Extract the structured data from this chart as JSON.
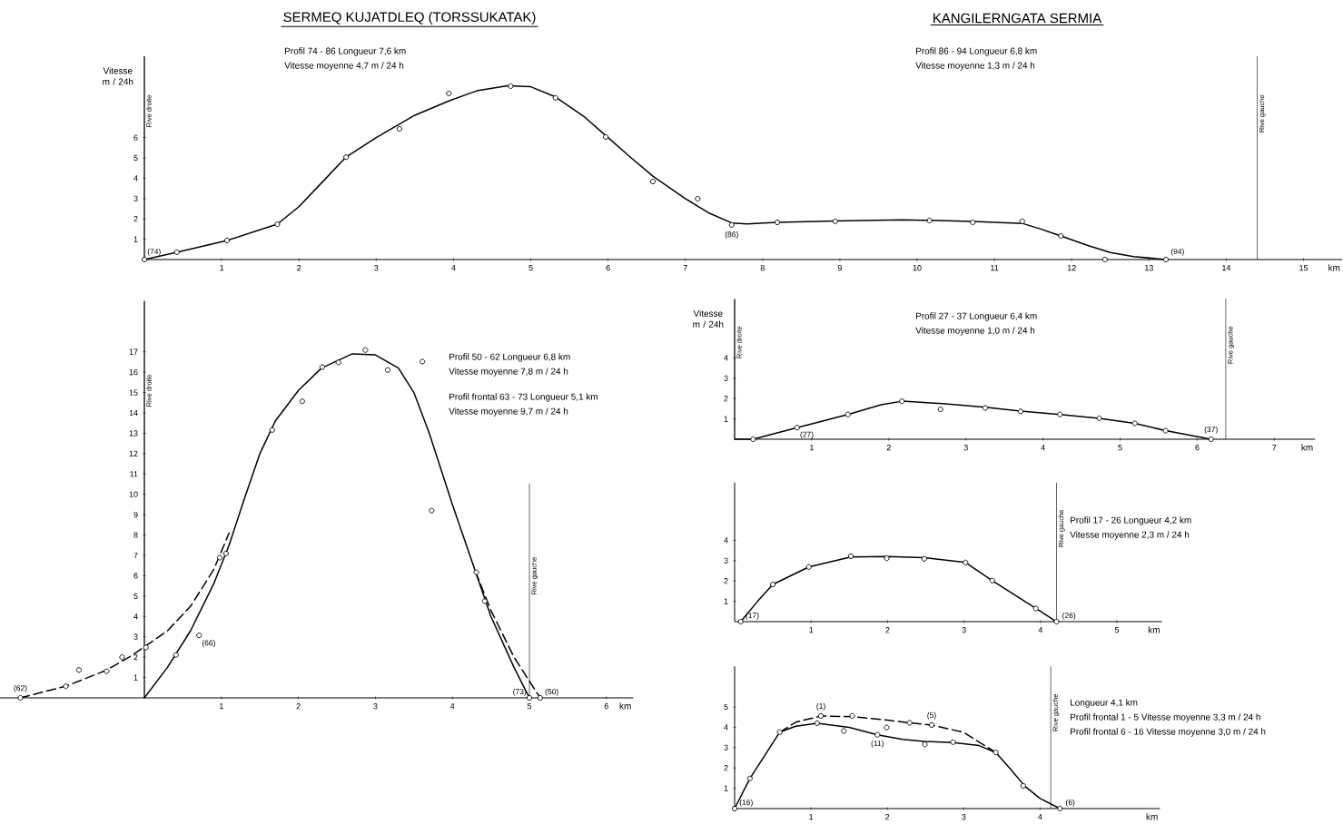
{
  "chart_data": [
    {
      "type": "line",
      "title": "SERMEQ KUJATDLEQ (TORSSUKATAK)",
      "ylabel": "Vitesse m / 24h",
      "xlabel": "km",
      "xlim": [
        0,
        15.5
      ],
      "ylim": [
        0,
        10
      ],
      "xticks": [
        1,
        2,
        3,
        4,
        5,
        6,
        7,
        8,
        9,
        10,
        11,
        12,
        13,
        14,
        15
      ],
      "yticks": [
        1,
        2,
        3,
        4,
        5,
        6
      ],
      "series": [
        {
          "type": "line",
          "color": "#000000",
          "marker": "none",
          "line_style": "solid",
          "x": [
            0,
            0.42,
            1.07,
            1.72,
            2,
            2.3,
            2.61,
            3,
            3.5,
            3.94,
            4.3,
            4.7,
            5,
            5.32,
            5.7,
            5.97,
            6.3,
            6.58,
            7,
            7.3,
            7.6,
            7.8,
            8.19,
            8.94,
            9.8,
            10.16,
            10.72,
            11.36,
            11.6,
            11.86,
            12.2,
            12.5,
            12.8,
            13.22
          ],
          "values": [
            0,
            0.36,
            0.94,
            1.74,
            2.6,
            3.8,
            5.04,
            6.0,
            7.1,
            7.8,
            8.3,
            8.55,
            8.5,
            8.0,
            7.0,
            6.1,
            5.0,
            4.1,
            3.0,
            2.3,
            1.8,
            1.75,
            1.83,
            1.9,
            1.95,
            1.93,
            1.87,
            1.78,
            1.5,
            1.16,
            0.7,
            0.35,
            0.15,
            0
          ]
        },
        {
          "type": "scatter",
          "color": "#000000",
          "marker": "circle",
          "x": [
            0,
            0.42,
            1.07,
            1.72,
            2.61,
            3.3,
            3.94,
            4.74,
            5.32,
            5.97,
            6.58,
            7.16,
            7.6,
            8.19,
            8.94,
            10.16,
            10.72,
            11.36,
            11.86,
            12.43,
            13.22
          ],
          "values": [
            0,
            0.36,
            0.94,
            1.74,
            5.04,
            6.43,
            8.17,
            8.53,
            7.95,
            6.03,
            3.84,
            2.99,
            1.7,
            1.83,
            1.88,
            1.92,
            1.83,
            1.88,
            1.16,
            0,
            0
          ]
        }
      ],
      "ref_lines": [
        {
          "axis": "x",
          "value": 0,
          "label": "Rive droite"
        },
        {
          "axis": "x",
          "value": 14.4,
          "label": "Rive gauche"
        }
      ],
      "annotations": [
        "Profil 74 - 86 Longueur 7,6 km",
        "Vitesse moyenne 4,7 m / 24 h",
        "KANGILERNGATA SERMIA",
        "Profil 86 - 94 Longueur 6,8 km",
        "Vitesse moyenne 1,3 m / 24 h",
        {
          "text": "(74)",
          "x": 0,
          "y": 0
        },
        {
          "text": "(86)",
          "x": 7.6,
          "y": 1.7
        },
        {
          "text": "(94)",
          "x": 13.22,
          "y": 0
        }
      ]
    },
    {
      "type": "line",
      "xlabel": "km",
      "xlim": [
        -1.88,
        6.35
      ],
      "ylim": [
        0,
        19.5
      ],
      "xticks": [
        1,
        2,
        3,
        4,
        5,
        6
      ],
      "yticks": [
        1,
        2,
        3,
        4,
        5,
        6,
        7,
        8,
        9,
        10,
        11,
        12,
        13,
        14,
        15,
        16,
        17
      ],
      "series": [
        {
          "type": "line",
          "color": "#000000",
          "marker": "none",
          "line_style": "solid",
          "x": [
            0,
            0.3,
            0.6,
            0.9,
            1.1,
            1.3,
            1.5,
            1.7,
            2.0,
            2.3,
            2.7,
            3.0,
            3.3,
            3.5,
            3.7,
            4.0,
            4.3,
            4.5,
            4.8,
            5.0
          ],
          "values": [
            0,
            1.5,
            3.3,
            5.6,
            7.5,
            9.8,
            12.0,
            13.6,
            15.1,
            16.2,
            16.9,
            16.85,
            16.2,
            15.0,
            13.0,
            9.5,
            6.2,
            4.0,
            1.5,
            0
          ]
        },
        {
          "type": "line",
          "color": "#000000",
          "marker": "none",
          "line_style": "dashed",
          "x": [
            -1.61,
            -1.0,
            -0.5,
            -0.2,
            0,
            0.3,
            0.6,
            0.9,
            1.1,
            2.7,
            4.3,
            4.5,
            4.8,
            5.14
          ],
          "values": [
            0,
            0.6,
            1.35,
            2.0,
            2.5,
            3.3,
            4.5,
            6.3,
            8.1,
            null,
            6.2,
            4.3,
            2.0,
            0
          ]
        },
        {
          "type": "scatter",
          "color": "#000000",
          "marker": "circle",
          "x": [
            -1.61,
            -1.02,
            -0.85,
            -0.49,
            -0.29,
            0.02,
            0.41,
            0.71,
            0.98,
            1.06,
            1.66,
            2.05,
            2.31,
            2.52,
            2.87,
            3.16,
            3.61,
            3.73,
            4.31,
            4.42,
            5.0,
            5.14
          ],
          "values": [
            0,
            0.57,
            1.37,
            1.31,
            2.0,
            2.48,
            2.11,
            3.07,
            6.89,
            7.09,
            13.16,
            14.57,
            16.25,
            16.48,
            17.09,
            16.11,
            16.52,
            9.2,
            6.17,
            4.75,
            0,
            0
          ]
        }
      ],
      "ref_lines": [
        {
          "axis": "x",
          "value": 0,
          "label": "Rive droite"
        },
        {
          "axis": "x",
          "value": 5,
          "label": "Rive gauche"
        }
      ],
      "annotations": [
        "Profil 50 - 62 Longueur 6,8 km",
        "Vitesse moyenne 7,8 m / 24 h",
        "Profil frontal 63 - 73 Longueur 5,1 km",
        "Vitesse moyenne 9,7 m / 24 h",
        {
          "text": "(62)",
          "x": -1.61,
          "y": 0
        },
        {
          "text": "(66)",
          "x": 0.71,
          "y": 3.07
        },
        {
          "text": "(73)",
          "x": 5.0,
          "y": 0
        },
        {
          "text": "(50)",
          "x": 5.14,
          "y": 0
        }
      ]
    },
    {
      "type": "line",
      "ylabel": "Vitesse m / 24h",
      "xlabel": "km",
      "xlim": [
        0,
        7.53
      ],
      "ylim": [
        0,
        6.9
      ],
      "xticks": [
        1,
        2,
        3,
        4,
        5,
        6,
        7
      ],
      "yticks": [
        1,
        2,
        3,
        4
      ],
      "series": [
        {
          "type": "line",
          "color": "#000000",
          "marker": "none",
          "line_style": "solid",
          "x": [
            0,
            0.24,
            0.81,
            1.47,
            1.9,
            2.17,
            2.7,
            3.25,
            3.71,
            4.22,
            4.73,
            5.19,
            5.59,
            6.18
          ],
          "values": [
            0,
            0,
            0.57,
            1.22,
            1.7,
            1.87,
            1.75,
            1.57,
            1.38,
            1.22,
            1.03,
            0.78,
            0.42,
            0
          ]
        },
        {
          "type": "scatter",
          "color": "#000000",
          "marker": "circle",
          "x": [
            0.24,
            0.81,
            1.47,
            2.17,
            2.67,
            3.25,
            3.71,
            4.22,
            4.73,
            5.19,
            5.59,
            6.18
          ],
          "values": [
            0,
            0.57,
            1.22,
            1.87,
            1.47,
            1.54,
            1.37,
            1.22,
            1.03,
            0.78,
            0.42,
            0
          ]
        }
      ],
      "ref_lines": [
        {
          "axis": "x",
          "value": 0,
          "label": "Rive droite"
        },
        {
          "axis": "x",
          "value": 6.37,
          "label": "Rive gauche"
        }
      ],
      "annotations": [
        "Profil 27 - 37 Longueur 6,4 km",
        "Vitesse moyenne 1,0 m / 24 h",
        {
          "text": "(27)",
          "x": 0.81,
          "y": 0.57
        },
        {
          "text": "(37)",
          "x": 6.18,
          "y": 0
        }
      ]
    },
    {
      "type": "line",
      "xlabel": "km",
      "xlim": [
        0,
        5.59
      ],
      "ylim": [
        0,
        6.84
      ],
      "xticks": [
        1,
        2,
        3,
        4,
        5
      ],
      "yticks": [
        1,
        2,
        3,
        4
      ],
      "series": [
        {
          "type": "line",
          "color": "#000000",
          "marker": "none",
          "line_style": "solid",
          "x": [
            0.08,
            0.3,
            0.5,
            0.97,
            1.52,
            1.99,
            2.48,
            3.02,
            3.37,
            3.94,
            4.21
          ],
          "values": [
            0,
            1.0,
            1.83,
            2.69,
            3.18,
            3.2,
            3.15,
            2.91,
            2.02,
            0.65,
            0
          ]
        },
        {
          "type": "scatter",
          "color": "#000000",
          "marker": "circle",
          "x": [
            0.08,
            0.5,
            0.97,
            1.52,
            1.99,
            2.48,
            3.02,
            3.37,
            3.94,
            4.21
          ],
          "values": [
            0,
            1.83,
            2.69,
            3.22,
            3.12,
            3.09,
            2.91,
            2.02,
            0.65,
            0
          ]
        }
      ],
      "ref_lines": [
        {
          "axis": "x",
          "value": 4.21,
          "label": "Rive gauche"
        }
      ],
      "annotations": [
        "Profil 17 - 26 Longueur 4,2 km",
        "Vitesse moyenne 2,3 m / 24 h",
        {
          "text": "(17)",
          "x": 0.08,
          "y": 0
        },
        {
          "text": "(26)",
          "x": 4.21,
          "y": 0
        }
      ]
    },
    {
      "type": "line",
      "xlabel": "km",
      "xlim": [
        0,
        5.57
      ],
      "ylim": [
        0,
        7.0
      ],
      "xticks": [
        1,
        2,
        3,
        4
      ],
      "yticks": [
        1,
        2,
        3,
        4,
        5
      ],
      "series": [
        {
          "type": "line",
          "color": "#000000",
          "marker": "none",
          "line_style": "solid",
          "x": [
            0,
            0.2,
            0.59,
            0.8,
            1.08,
            1.5,
            1.87,
            2.2,
            2.49,
            2.86,
            3.2,
            3.42,
            3.6,
            3.8,
            4.0,
            4.26
          ],
          "values": [
            0,
            1.48,
            3.76,
            4.05,
            4.2,
            4.0,
            3.63,
            3.4,
            3.3,
            3.25,
            3.1,
            2.76,
            2.0,
            1.1,
            0.5,
            0
          ]
        },
        {
          "type": "line",
          "color": "#000000",
          "marker": "none",
          "line_style": "dashed",
          "x": [
            0.59,
            0.8,
            1.13,
            1.54,
            2.0,
            2.29,
            2.58,
            3.0,
            3.42
          ],
          "values": [
            3.76,
            4.25,
            4.56,
            4.52,
            4.35,
            4.22,
            4.11,
            3.75,
            2.76
          ]
        },
        {
          "type": "scatter",
          "color": "#000000",
          "marker": "circle",
          "x": [
            0,
            0.2,
            0.59,
            1.08,
            1.43,
            1.87,
            2.49,
            2.86,
            3.42,
            3.78,
            4.26,
            1.13,
            1.54,
            1.99,
            2.29,
            2.58
          ],
          "values": [
            0,
            1.48,
            3.76,
            4.2,
            3.82,
            3.63,
            3.16,
            3.27,
            2.76,
            1.12,
            0,
            4.56,
            4.56,
            3.99,
            4.22,
            4.11
          ]
        }
      ],
      "ref_lines": [
        {
          "axis": "x",
          "value": 4.14,
          "label": "Rive gauche"
        }
      ],
      "annotations": [
        "Longueur 4,1 km",
        "Profil frontal 1 - 5 Vitesse moyenne 3,3 m / 24 h",
        "Profil frontal 6 - 16 Vitesse moyenne 3,0 m / 24 h",
        {
          "text": "(1)",
          "x": 1.13,
          "y": 4.56
        },
        {
          "text": "(5)",
          "x": 2.58,
          "y": 4.11
        },
        {
          "text": "(11)",
          "x": 1.87,
          "y": 3.63
        },
        {
          "text": "(16)",
          "x": 0,
          "y": 0
        },
        {
          "text": "(6)",
          "x": 4.26,
          "y": 0
        }
      ]
    }
  ]
}
